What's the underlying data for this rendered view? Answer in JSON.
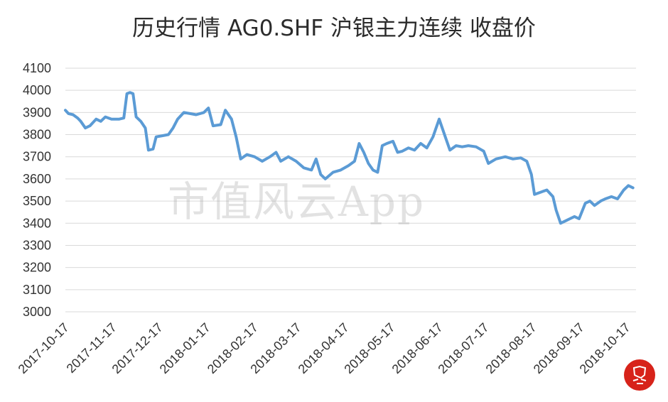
{
  "title": "历史行情 AG0.SHF 沪银主力连续 收盘价",
  "watermark": "市值风云App",
  "seal": {
    "text": "风云",
    "color": "#d7231a"
  },
  "colors": {
    "line": "#5b9bd5",
    "grid": "#d9d9d9",
    "text": "#333333"
  },
  "chart_data": {
    "type": "line",
    "title": "历史行情 AG0.SHF 沪银主力连续 收盘价",
    "ylim": [
      3000,
      4100
    ],
    "yticks": [
      3000,
      3100,
      3200,
      3300,
      3400,
      3500,
      3600,
      3700,
      3800,
      3900,
      4000,
      4100
    ],
    "xlim": [
      "2017-10-17",
      "2018-10-23"
    ],
    "xticks": [
      "2017-10-17",
      "2017-11-17",
      "2017-12-17",
      "2018-01-17",
      "2018-02-17",
      "2018-03-17",
      "2018-04-17",
      "2018-05-17",
      "2018-06-17",
      "2018-07-17",
      "2018-08-17",
      "2018-09-17",
      "2018-10-17"
    ],
    "grid": true,
    "legend": "none",
    "series": [
      {
        "values": [
          [
            "2017-10-17",
            3910
          ],
          [
            "2017-10-19",
            3895
          ],
          [
            "2017-10-22",
            3890
          ],
          [
            "2017-10-25",
            3875
          ],
          [
            "2017-10-27",
            3860
          ],
          [
            "2017-10-30",
            3830
          ],
          [
            "2017-11-02",
            3840
          ],
          [
            "2017-11-06",
            3870
          ],
          [
            "2017-11-09",
            3860
          ],
          [
            "2017-11-12",
            3880
          ],
          [
            "2017-11-16",
            3870
          ],
          [
            "2017-11-21",
            3870
          ],
          [
            "2017-11-24",
            3875
          ],
          [
            "2017-11-26",
            3985
          ],
          [
            "2017-11-28",
            3990
          ],
          [
            "2017-11-30",
            3985
          ],
          [
            "2017-12-02",
            3880
          ],
          [
            "2017-12-05",
            3860
          ],
          [
            "2017-12-08",
            3830
          ],
          [
            "2017-12-10",
            3730
          ],
          [
            "2017-12-13",
            3735
          ],
          [
            "2017-12-15",
            3790
          ],
          [
            "2017-12-19",
            3795
          ],
          [
            "2017-12-23",
            3800
          ],
          [
            "2017-12-26",
            3830
          ],
          [
            "2017-12-29",
            3870
          ],
          [
            "2018-01-02",
            3900
          ],
          [
            "2018-01-06",
            3895
          ],
          [
            "2018-01-10",
            3890
          ],
          [
            "2018-01-15",
            3900
          ],
          [
            "2018-01-18",
            3920
          ],
          [
            "2018-01-21",
            3840
          ],
          [
            "2018-01-26",
            3845
          ],
          [
            "2018-01-29",
            3910
          ],
          [
            "2018-02-02",
            3870
          ],
          [
            "2018-02-05",
            3790
          ],
          [
            "2018-02-08",
            3690
          ],
          [
            "2018-02-12",
            3710
          ],
          [
            "2018-02-17",
            3700
          ],
          [
            "2018-02-22",
            3680
          ],
          [
            "2018-02-27",
            3700
          ],
          [
            "2018-03-03",
            3720
          ],
          [
            "2018-03-06",
            3680
          ],
          [
            "2018-03-11",
            3700
          ],
          [
            "2018-03-16",
            3680
          ],
          [
            "2018-03-21",
            3650
          ],
          [
            "2018-03-26",
            3640
          ],
          [
            "2018-03-29",
            3690
          ],
          [
            "2018-04-01",
            3620
          ],
          [
            "2018-04-04",
            3600
          ],
          [
            "2018-04-09",
            3630
          ],
          [
            "2018-04-14",
            3640
          ],
          [
            "2018-04-19",
            3660
          ],
          [
            "2018-04-23",
            3680
          ],
          [
            "2018-04-26",
            3760
          ],
          [
            "2018-04-29",
            3720
          ],
          [
            "2018-05-02",
            3670
          ],
          [
            "2018-05-05",
            3640
          ],
          [
            "2018-05-08",
            3630
          ],
          [
            "2018-05-11",
            3750
          ],
          [
            "2018-05-14",
            3760
          ],
          [
            "2018-05-18",
            3770
          ],
          [
            "2018-05-21",
            3720
          ],
          [
            "2018-05-24",
            3725
          ],
          [
            "2018-05-28",
            3740
          ],
          [
            "2018-06-01",
            3730
          ],
          [
            "2018-06-05",
            3760
          ],
          [
            "2018-06-09",
            3740
          ],
          [
            "2018-06-13",
            3790
          ],
          [
            "2018-06-17",
            3870
          ],
          [
            "2018-06-21",
            3790
          ],
          [
            "2018-06-24",
            3730
          ],
          [
            "2018-06-28",
            3750
          ],
          [
            "2018-07-02",
            3745
          ],
          [
            "2018-07-06",
            3750
          ],
          [
            "2018-07-11",
            3745
          ],
          [
            "2018-07-16",
            3725
          ],
          [
            "2018-07-19",
            3670
          ],
          [
            "2018-07-24",
            3690
          ],
          [
            "2018-07-30",
            3700
          ],
          [
            "2018-08-04",
            3690
          ],
          [
            "2018-08-09",
            3695
          ],
          [
            "2018-08-13",
            3680
          ],
          [
            "2018-08-16",
            3620
          ],
          [
            "2018-08-18",
            3530
          ],
          [
            "2018-08-22",
            3540
          ],
          [
            "2018-08-26",
            3550
          ],
          [
            "2018-08-30",
            3520
          ],
          [
            "2018-09-01",
            3460
          ],
          [
            "2018-09-04",
            3400
          ],
          [
            "2018-09-07",
            3410
          ],
          [
            "2018-09-10",
            3420
          ],
          [
            "2018-09-13",
            3430
          ],
          [
            "2018-09-16",
            3420
          ],
          [
            "2018-09-20",
            3490
          ],
          [
            "2018-09-23",
            3500
          ],
          [
            "2018-09-26",
            3480
          ],
          [
            "2018-09-30",
            3500
          ],
          [
            "2018-10-03",
            3510
          ],
          [
            "2018-10-07",
            3520
          ],
          [
            "2018-10-11",
            3510
          ],
          [
            "2018-10-15",
            3550
          ],
          [
            "2018-10-18",
            3570
          ],
          [
            "2018-10-21",
            3560
          ]
        ]
      }
    ]
  }
}
